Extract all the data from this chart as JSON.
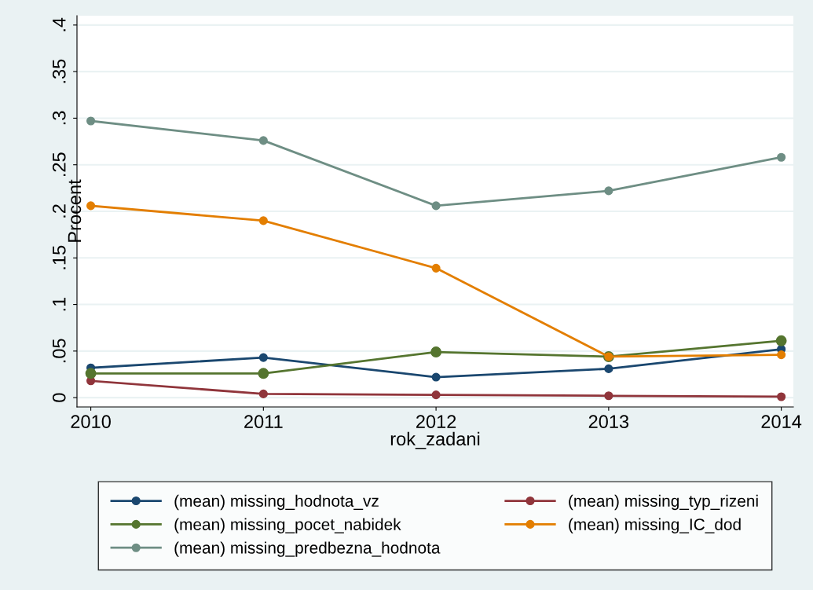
{
  "chart_data": {
    "type": "line",
    "xlabel": "rok_zadani",
    "ylabel": "Procent",
    "x": [
      2010,
      2011,
      2012,
      2013,
      2014
    ],
    "series": [
      {
        "name": "(mean) missing_hodnota_vz",
        "color": "#1a476f",
        "values": [
          0.032,
          0.043,
          0.022,
          0.031,
          0.052
        ]
      },
      {
        "name": "(mean) missing_typ_rizeni",
        "color": "#90353b",
        "values": [
          0.018,
          0.004,
          0.003,
          0.002,
          0.001
        ]
      },
      {
        "name": "(mean) missing_pocet_nabidek",
        "color": "#55752f",
        "values": [
          0.026,
          0.026,
          0.049,
          0.044,
          0.061
        ]
      },
      {
        "name": "(mean) missing_IC_dod",
        "color": "#e37e00",
        "values": [
          0.206,
          0.19,
          0.139,
          0.044,
          0.046
        ]
      },
      {
        "name": "(mean) missing_predbezna_hodnota",
        "color": "#6e8e84",
        "values": [
          0.297,
          0.276,
          0.206,
          0.222,
          0.258
        ]
      }
    ],
    "xlim": [
      2009.92,
      2014.07
    ],
    "ylim": [
      -0.01,
      0.41
    ],
    "xticks": [
      2010,
      2011,
      2012,
      2013,
      2014
    ],
    "yticks": [
      {
        "value": 0,
        "label": "0"
      },
      {
        "value": 0.05,
        "label": ".05"
      },
      {
        "value": 0.1,
        "label": ".1"
      },
      {
        "value": 0.15,
        "label": ".15"
      },
      {
        "value": 0.2,
        "label": ".2"
      },
      {
        "value": 0.25,
        "label": ".25"
      },
      {
        "value": 0.3,
        "label": ".3"
      },
      {
        "value": 0.35,
        "label": ".35"
      },
      {
        "value": 0.4,
        "label": ".4"
      }
    ],
    "grid": "y",
    "legend": "bottom",
    "marker": "circle",
    "line_style": "solid"
  }
}
